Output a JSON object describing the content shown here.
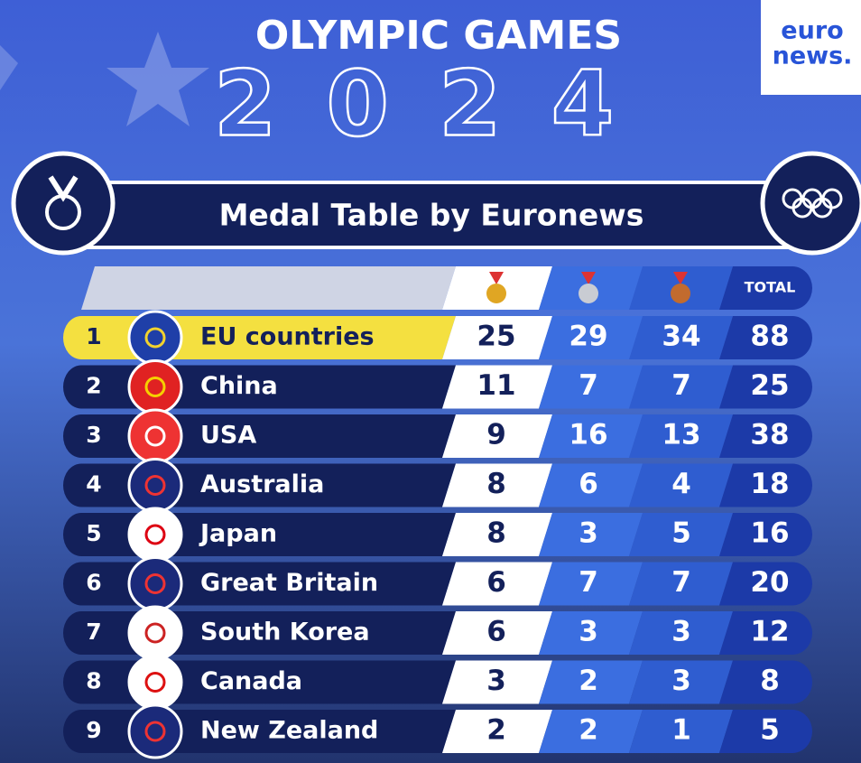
{
  "header": {
    "title": "OLYMPIC GAMES",
    "year": "2024",
    "logo_top": "euro",
    "logo_bottom": "news."
  },
  "banner": {
    "title": "Medal Table by Euronews"
  },
  "table": {
    "total_header": "TOTAL",
    "rows": [
      {
        "rank": 1,
        "country": "EU countries",
        "gold": 25,
        "silver": 29,
        "bronze": 34,
        "total": 88
      },
      {
        "rank": 2,
        "country": "China",
        "gold": 11,
        "silver": 7,
        "bronze": 7,
        "total": 25
      },
      {
        "rank": 3,
        "country": "USA",
        "gold": 9,
        "silver": 16,
        "bronze": 13,
        "total": 38
      },
      {
        "rank": 4,
        "country": "Australia",
        "gold": 8,
        "silver": 6,
        "bronze": 4,
        "total": 18
      },
      {
        "rank": 5,
        "country": "Japan",
        "gold": 8,
        "silver": 3,
        "bronze": 5,
        "total": 16
      },
      {
        "rank": 6,
        "country": "Great Britain",
        "gold": 6,
        "silver": 7,
        "bronze": 7,
        "total": 20
      },
      {
        "rank": 7,
        "country": "South Korea",
        "gold": 6,
        "silver": 3,
        "bronze": 3,
        "total": 12
      },
      {
        "rank": 8,
        "country": "Canada",
        "gold": 3,
        "silver": 2,
        "bronze": 3,
        "total": 8
      },
      {
        "rank": 9,
        "country": "New Zealand",
        "gold": 2,
        "silver": 2,
        "bronze": 1,
        "total": 5
      }
    ]
  }
}
